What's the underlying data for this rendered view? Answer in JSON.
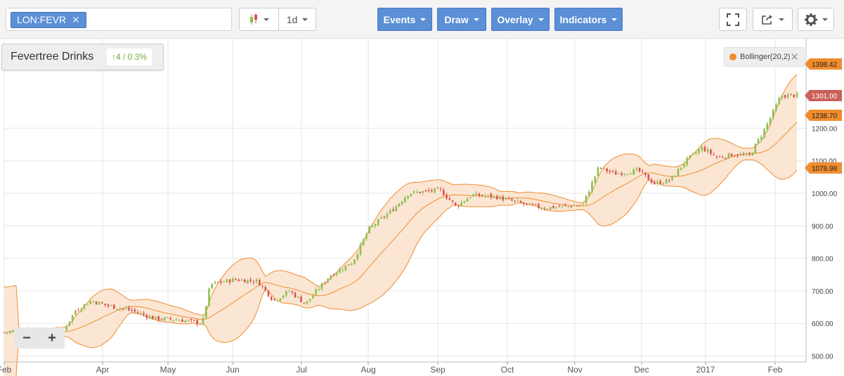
{
  "toolbar": {
    "symbol": "LON:FEVR",
    "symbol_clear": "✕",
    "chart_type_icon": "candlestick-icon",
    "interval": "1d",
    "events_label": "Events",
    "draw_label": "Draw",
    "overlay_label": "Overlay",
    "indicators_label": "Indicators",
    "fullscreen_icon": "fullscreen-icon",
    "share_icon": "share-icon",
    "settings_icon": "gear-icon"
  },
  "title": {
    "name": "Fevertree Drinks",
    "change": "↑4 / 0.3%"
  },
  "legend": {
    "label": "Bollinger(20,2)",
    "close": "✕",
    "color": "#f08c2e"
  },
  "zoom": {
    "minus": "−",
    "plus": "+"
  },
  "colors": {
    "up": "#8cc152",
    "down": "#d9534f",
    "band_fill": "#fbe3cf",
    "band_line": "#f08c2e",
    "price_tag": "#c9605a"
  },
  "chart_data": {
    "type": "candlestick",
    "indicator": "Bollinger(20,2)",
    "x_tick_labels": [
      "Feb",
      "Apr",
      "May",
      "Jun",
      "Jul",
      "Aug",
      "Sep",
      "Oct",
      "Nov",
      "Dec",
      "2017",
      "Feb"
    ],
    "y_tick_labels": [
      "500.00",
      "600.00",
      "700.00",
      "800.00",
      "900.00",
      "1000.00",
      "1100.00",
      "1200.00"
    ],
    "ylim": [
      488,
      1420
    ],
    "price_tags": {
      "upper": "1398.42",
      "last": "1301.00",
      "middle": "1238.70",
      "lower": "1078.98"
    },
    "approx_close_series": [
      {
        "x": 0.0,
        "y": 572
      },
      {
        "x": 0.03,
        "y": 585
      },
      {
        "x": 0.07,
        "y": 560
      },
      {
        "x": 0.09,
        "y": 640
      },
      {
        "x": 0.11,
        "y": 670
      },
      {
        "x": 0.13,
        "y": 655
      },
      {
        "x": 0.16,
        "y": 640
      },
      {
        "x": 0.19,
        "y": 615
      },
      {
        "x": 0.22,
        "y": 612
      },
      {
        "x": 0.25,
        "y": 600
      },
      {
        "x": 0.26,
        "y": 720
      },
      {
        "x": 0.29,
        "y": 735
      },
      {
        "x": 0.32,
        "y": 730
      },
      {
        "x": 0.34,
        "y": 670
      },
      {
        "x": 0.36,
        "y": 700
      },
      {
        "x": 0.38,
        "y": 660
      },
      {
        "x": 0.41,
        "y": 745
      },
      {
        "x": 0.44,
        "y": 790
      },
      {
        "x": 0.46,
        "y": 890
      },
      {
        "x": 0.49,
        "y": 950
      },
      {
        "x": 0.51,
        "y": 1000
      },
      {
        "x": 0.53,
        "y": 1005
      },
      {
        "x": 0.55,
        "y": 1010
      },
      {
        "x": 0.57,
        "y": 960
      },
      {
        "x": 0.59,
        "y": 995
      },
      {
        "x": 0.62,
        "y": 990
      },
      {
        "x": 0.65,
        "y": 970
      },
      {
        "x": 0.68,
        "y": 955
      },
      {
        "x": 0.71,
        "y": 960
      },
      {
        "x": 0.73,
        "y": 965
      },
      {
        "x": 0.75,
        "y": 1080
      },
      {
        "x": 0.77,
        "y": 1060
      },
      {
        "x": 0.8,
        "y": 1070
      },
      {
        "x": 0.82,
        "y": 1030
      },
      {
        "x": 0.84,
        "y": 1040
      },
      {
        "x": 0.86,
        "y": 1100
      },
      {
        "x": 0.88,
        "y": 1140
      },
      {
        "x": 0.9,
        "y": 1110
      },
      {
        "x": 0.92,
        "y": 1120
      },
      {
        "x": 0.94,
        "y": 1115
      },
      {
        "x": 0.96,
        "y": 1200
      },
      {
        "x": 0.98,
        "y": 1300
      },
      {
        "x": 1.0,
        "y": 1301
      }
    ]
  }
}
